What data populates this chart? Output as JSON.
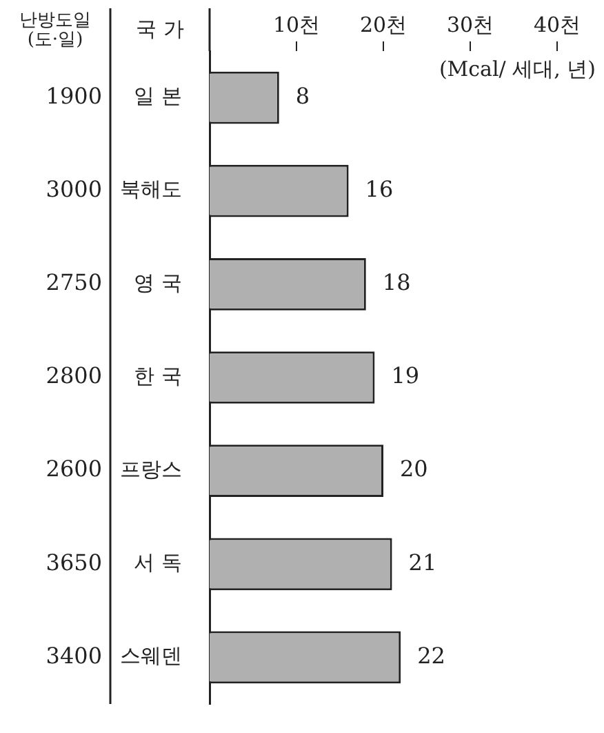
{
  "chart_data": {
    "type": "bar",
    "orientation": "horizontal",
    "ylabel": "국 가",
    "xlabel": "(Mcal/ 세대, 년)",
    "categories": [
      "일 본",
      "북해도",
      "영 국",
      "한 국",
      "프랑스",
      "서 독",
      "스웨덴"
    ],
    "values": [
      8,
      16,
      18,
      19,
      20,
      21,
      22
    ],
    "color": "#b0b0b0",
    "data_labels": true,
    "xlim": [
      0,
      40
    ],
    "xticks": [
      {
        "value": 10,
        "label": "10천"
      },
      {
        "value": 20,
        "label": "20천"
      },
      {
        "value": 30,
        "label": "30천"
      },
      {
        "value": 40,
        "label": "40천"
      }
    ],
    "grid": false,
    "legend": false,
    "annotations": [
      "난방도일\n(도·일)",
      "1900",
      "3000",
      "2750",
      "2800",
      "2600",
      "3650",
      "3400"
    ]
  }
}
